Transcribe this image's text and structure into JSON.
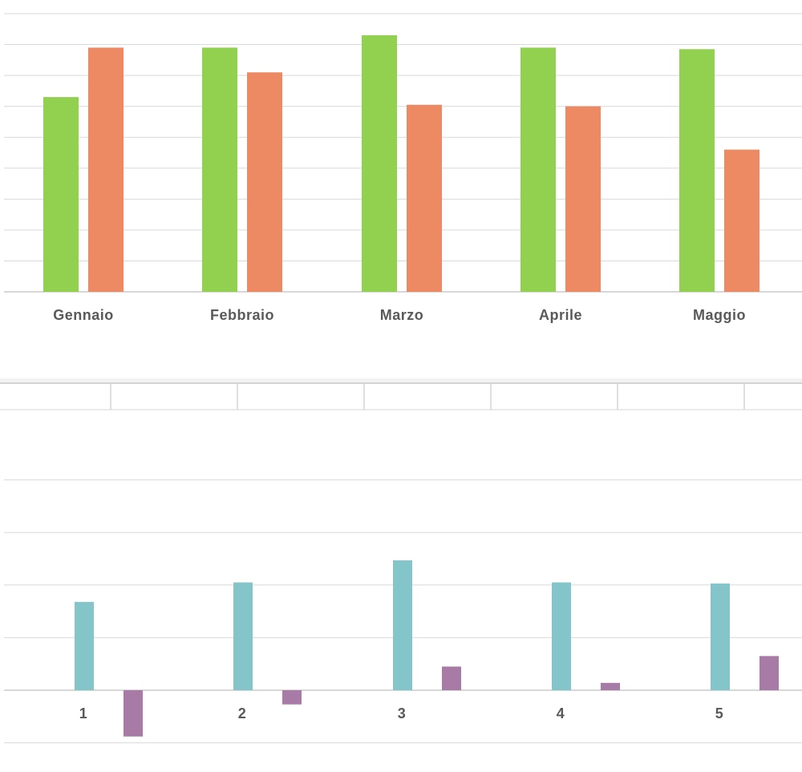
{
  "colors": {
    "green": "#92d050",
    "orange": "#ed8963",
    "teal": "#84c5ca",
    "purple": "#a87ba7",
    "grid": "#d9d9d9",
    "label": "#595959"
  },
  "chart_data": [
    {
      "type": "bar",
      "categories": [
        "Gennaio",
        "Febbraio",
        "Marzo",
        "Aprile",
        "Maggio"
      ],
      "series": [
        {
          "values": [
            63,
            79,
            83,
            79,
            78.5
          ],
          "color": "#92d050"
        },
        {
          "values": [
            79,
            71,
            60.5,
            60,
            46
          ],
          "color": "#ed8963"
        }
      ],
      "ylim": [
        0,
        90
      ],
      "grid": true,
      "legend": "none"
    },
    {
      "type": "bar",
      "categories": [
        "1",
        "2",
        "3",
        "4",
        "5"
      ],
      "series": [
        {
          "values": [
            16.8,
            20.5,
            24.7,
            20.5,
            20.3
          ],
          "color": "#84c5ca"
        },
        {
          "values": [
            -8.8,
            -2.7,
            4.5,
            1.4,
            6.5
          ],
          "color": "#a87ba7"
        }
      ],
      "ylim": [
        -10,
        40
      ],
      "grid": true,
      "legend": "none"
    }
  ]
}
